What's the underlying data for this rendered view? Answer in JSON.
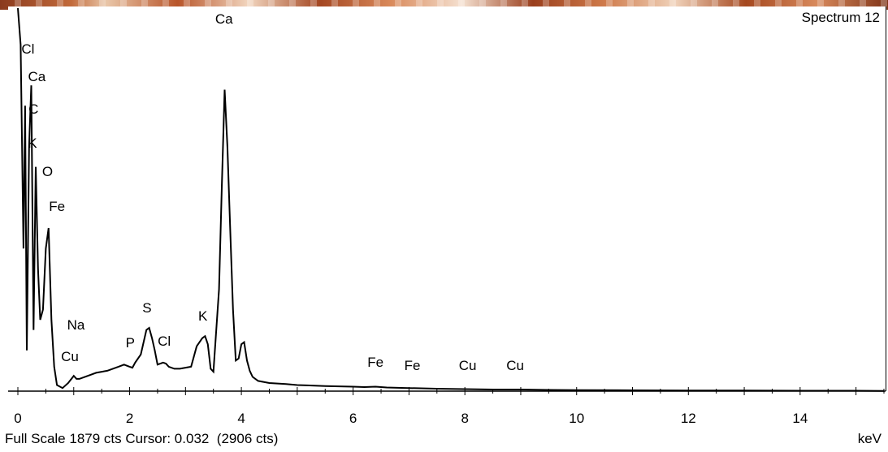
{
  "spectrum_name": "Spectrum 12",
  "footer": {
    "status": "Full Scale 1879 cts Cursor: 0.032  (2906 cts)",
    "unit": "keV"
  },
  "colors": {
    "trace": "#000000",
    "background": "#ffffff"
  },
  "chart_data": {
    "type": "line",
    "title": "Spectrum 12",
    "xlabel": "keV",
    "ylabel": "",
    "xlim": [
      0,
      15.5
    ],
    "ylim": [
      0,
      1879
    ],
    "x_ticks": [
      0,
      2,
      4,
      6,
      8,
      10,
      12,
      14
    ],
    "grid": false,
    "series": [
      {
        "x": [
          0.0,
          0.05,
          0.1,
          0.13,
          0.16,
          0.2,
          0.24,
          0.28,
          0.32,
          0.36,
          0.4,
          0.45,
          0.5,
          0.55,
          0.6,
          0.65,
          0.7,
          0.8,
          0.9,
          1.0,
          1.05,
          1.1,
          1.2,
          1.3,
          1.4,
          1.5,
          1.6,
          1.7,
          1.8,
          1.9,
          2.0,
          2.05,
          2.1,
          2.2,
          2.3,
          2.35,
          2.4,
          2.45,
          2.5,
          2.6,
          2.65,
          2.7,
          2.8,
          2.9,
          3.0,
          3.1,
          3.2,
          3.3,
          3.35,
          3.4,
          3.45,
          3.5,
          3.6,
          3.65,
          3.7,
          3.75,
          3.8,
          3.85,
          3.9,
          3.95,
          4.0,
          4.05,
          4.1,
          4.15,
          4.2,
          4.3,
          4.5,
          4.8,
          5.0,
          5.5,
          6.0,
          6.2,
          6.4,
          6.6,
          7.0,
          7.5,
          8.0,
          8.5,
          9.0,
          9.5,
          10.0,
          11.0,
          12.0,
          13.0,
          14.0,
          15.0,
          15.5
        ],
        "y": [
          1879,
          1700,
          700,
          1400,
          200,
          1200,
          1500,
          300,
          1100,
          600,
          350,
          400,
          700,
          800,
          350,
          120,
          30,
          15,
          40,
          75,
          60,
          60,
          70,
          80,
          90,
          95,
          100,
          110,
          120,
          130,
          120,
          115,
          140,
          180,
          300,
          310,
          260,
          200,
          130,
          140,
          135,
          120,
          110,
          110,
          115,
          120,
          220,
          260,
          270,
          230,
          110,
          95,
          500,
          1000,
          1479,
          1200,
          800,
          400,
          150,
          160,
          230,
          240,
          150,
          100,
          70,
          50,
          40,
          35,
          30,
          25,
          22,
          20,
          22,
          18,
          15,
          12,
          10,
          8,
          8,
          6,
          5,
          4,
          3,
          3,
          2,
          2,
          1
        ]
      }
    ],
    "annotations": [
      {
        "text": "Ca",
        "x": 3.69
      },
      {
        "text": "Cl",
        "x": 0.18
      },
      {
        "text": "Ca",
        "x": 0.34
      },
      {
        "text": "C",
        "x": 0.28
      },
      {
        "text": "K",
        "x": 0.26
      },
      {
        "text": "O",
        "x": 0.53
      },
      {
        "text": "Fe",
        "x": 0.7
      },
      {
        "text": "Na",
        "x": 1.04
      },
      {
        "text": "Cu",
        "x": 0.93
      },
      {
        "text": "S",
        "x": 2.31
      },
      {
        "text": "P",
        "x": 2.01
      },
      {
        "text": "Cl",
        "x": 2.62
      },
      {
        "text": "K",
        "x": 3.31
      },
      {
        "text": "Fe",
        "x": 6.4
      },
      {
        "text": "Fe",
        "x": 7.06
      },
      {
        "text": "Cu",
        "x": 8.05
      },
      {
        "text": "Cu",
        "x": 8.9
      }
    ]
  }
}
